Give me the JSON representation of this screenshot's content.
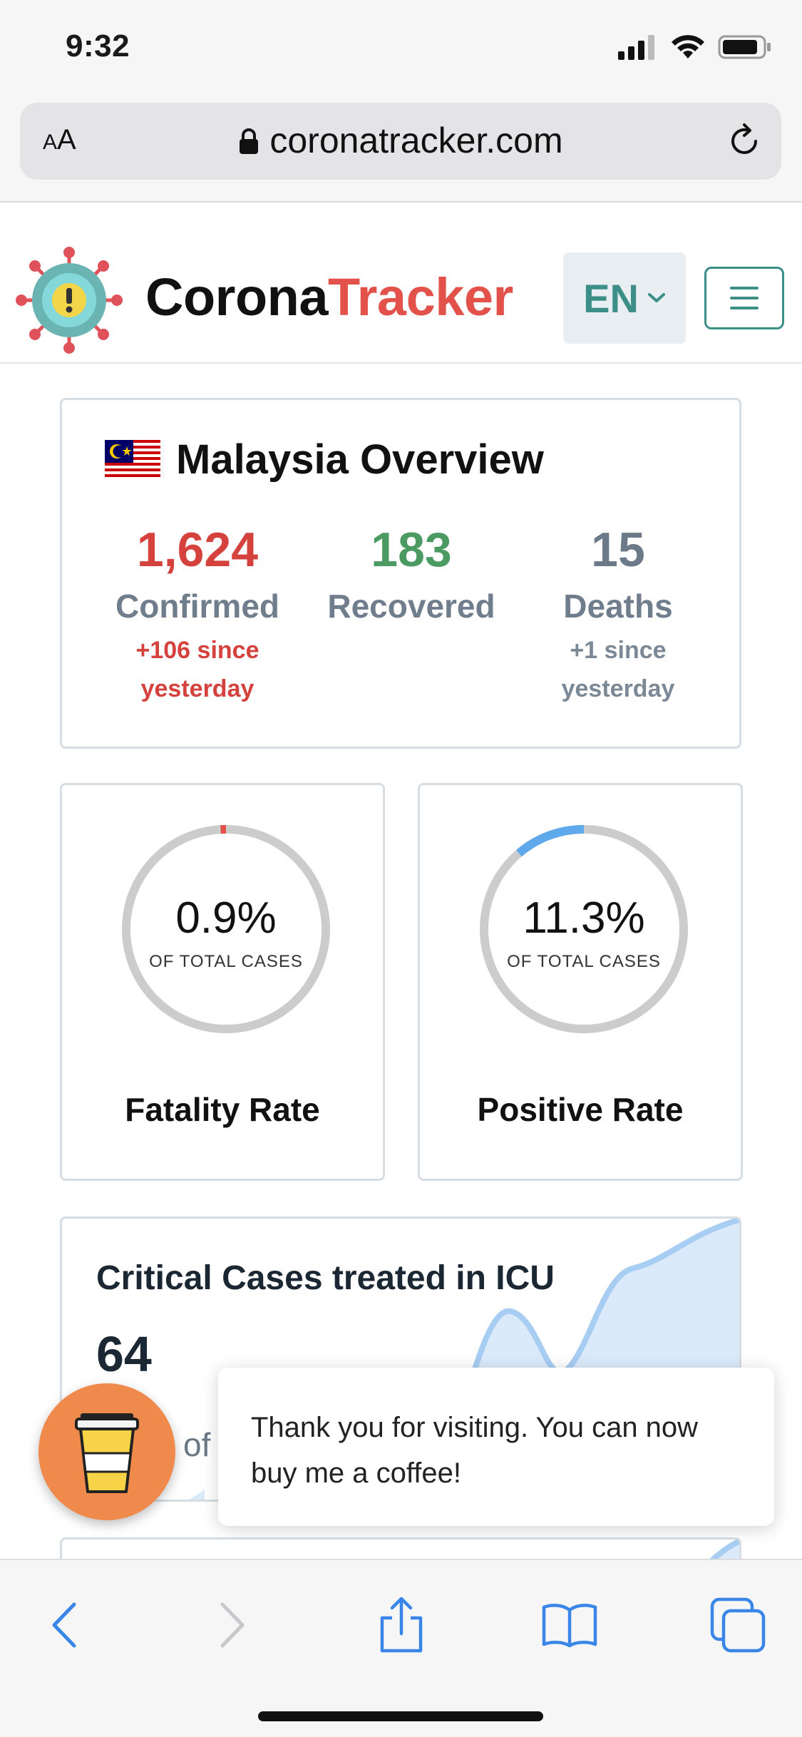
{
  "status_bar": {
    "time": "9:32",
    "icons": [
      "cellular-signal-icon",
      "wifi-icon",
      "battery-icon"
    ]
  },
  "browser": {
    "text_size_label_small": "A",
    "text_size_label_large": "A",
    "url": "coronatracker.com",
    "icons": [
      "lock-icon",
      "reload-icon"
    ]
  },
  "header": {
    "brand_part1": "Corona",
    "brand_part2": "Tracker",
    "language": "EN",
    "colors": {
      "brand_red": "#e2524b",
      "accent_teal": "#3c8f87"
    }
  },
  "overview": {
    "title": "Malaysia Overview",
    "flag": "malaysia-flag-icon",
    "confirmed": {
      "value": "1,624",
      "label": "Confirmed",
      "change_line1": "+106 since",
      "change_line2": "yesterday",
      "color": "#d5423d"
    },
    "recovered": {
      "value": "183",
      "label": "Recovered",
      "color": "#4a9a62"
    },
    "deaths": {
      "value": "15",
      "label": "Deaths",
      "change_line1": "+1 since",
      "change_line2": "yesterday",
      "color": "#6c7988"
    }
  },
  "rates": [
    {
      "title": "Fatality Rate",
      "value": "0.9%",
      "sub": "OF TOTAL CASES",
      "fraction": 0.009,
      "color": "#e2524b"
    },
    {
      "title": "Positive Rate",
      "value": "11.3%",
      "sub": "OF TOTAL CASES",
      "fraction": 0.113,
      "color": "#5ea8ec"
    }
  ],
  "icu": {
    "title": "Critical Cases treated in ICU",
    "value": "64",
    "sub_partial": "of"
  },
  "coffee": {
    "toast_text": "Thank you for visiting. You can now buy me a coffee!",
    "icon": "coffee-cup-icon",
    "color": "#ef8a4c"
  },
  "toolbar": {
    "icons": [
      "back-icon",
      "forward-icon",
      "share-icon",
      "bookmarks-icon",
      "tabs-icon"
    ]
  }
}
